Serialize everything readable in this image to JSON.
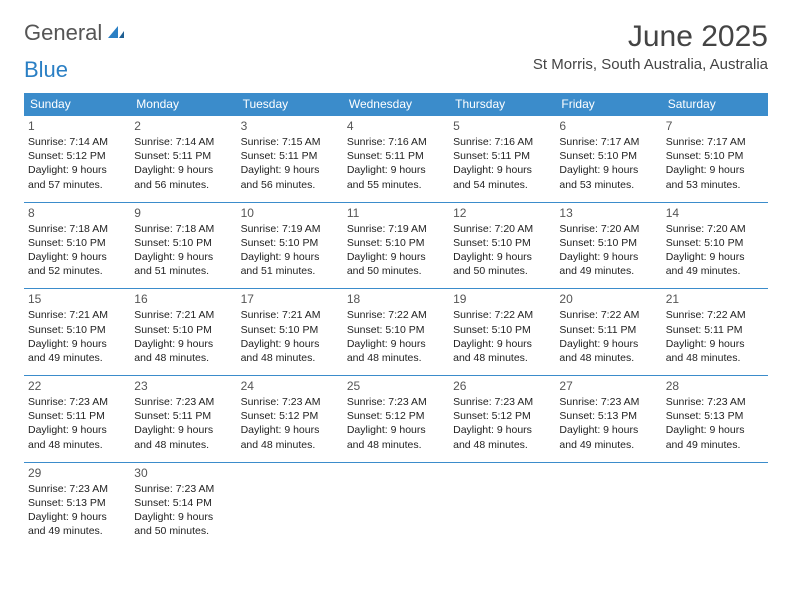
{
  "logo": {
    "general": "General",
    "blue": "Blue"
  },
  "title": "June 2025",
  "location": "St Morris, South Australia, Australia",
  "colors": {
    "header_bg": "#3b8ccb",
    "header_text": "#ffffff",
    "border": "#3b8ccb",
    "accent": "#2a7fc4",
    "text": "#222222",
    "muted": "#555555",
    "background": "#ffffff"
  },
  "day_headers": [
    "Sunday",
    "Monday",
    "Tuesday",
    "Wednesday",
    "Thursday",
    "Friday",
    "Saturday"
  ],
  "weeks": [
    [
      {
        "n": "1",
        "sr": "Sunrise: 7:14 AM",
        "ss": "Sunset: 5:12 PM",
        "d1": "Daylight: 9 hours",
        "d2": "and 57 minutes."
      },
      {
        "n": "2",
        "sr": "Sunrise: 7:14 AM",
        "ss": "Sunset: 5:11 PM",
        "d1": "Daylight: 9 hours",
        "d2": "and 56 minutes."
      },
      {
        "n": "3",
        "sr": "Sunrise: 7:15 AM",
        "ss": "Sunset: 5:11 PM",
        "d1": "Daylight: 9 hours",
        "d2": "and 56 minutes."
      },
      {
        "n": "4",
        "sr": "Sunrise: 7:16 AM",
        "ss": "Sunset: 5:11 PM",
        "d1": "Daylight: 9 hours",
        "d2": "and 55 minutes."
      },
      {
        "n": "5",
        "sr": "Sunrise: 7:16 AM",
        "ss": "Sunset: 5:11 PM",
        "d1": "Daylight: 9 hours",
        "d2": "and 54 minutes."
      },
      {
        "n": "6",
        "sr": "Sunrise: 7:17 AM",
        "ss": "Sunset: 5:10 PM",
        "d1": "Daylight: 9 hours",
        "d2": "and 53 minutes."
      },
      {
        "n": "7",
        "sr": "Sunrise: 7:17 AM",
        "ss": "Sunset: 5:10 PM",
        "d1": "Daylight: 9 hours",
        "d2": "and 53 minutes."
      }
    ],
    [
      {
        "n": "8",
        "sr": "Sunrise: 7:18 AM",
        "ss": "Sunset: 5:10 PM",
        "d1": "Daylight: 9 hours",
        "d2": "and 52 minutes."
      },
      {
        "n": "9",
        "sr": "Sunrise: 7:18 AM",
        "ss": "Sunset: 5:10 PM",
        "d1": "Daylight: 9 hours",
        "d2": "and 51 minutes."
      },
      {
        "n": "10",
        "sr": "Sunrise: 7:19 AM",
        "ss": "Sunset: 5:10 PM",
        "d1": "Daylight: 9 hours",
        "d2": "and 51 minutes."
      },
      {
        "n": "11",
        "sr": "Sunrise: 7:19 AM",
        "ss": "Sunset: 5:10 PM",
        "d1": "Daylight: 9 hours",
        "d2": "and 50 minutes."
      },
      {
        "n": "12",
        "sr": "Sunrise: 7:20 AM",
        "ss": "Sunset: 5:10 PM",
        "d1": "Daylight: 9 hours",
        "d2": "and 50 minutes."
      },
      {
        "n": "13",
        "sr": "Sunrise: 7:20 AM",
        "ss": "Sunset: 5:10 PM",
        "d1": "Daylight: 9 hours",
        "d2": "and 49 minutes."
      },
      {
        "n": "14",
        "sr": "Sunrise: 7:20 AM",
        "ss": "Sunset: 5:10 PM",
        "d1": "Daylight: 9 hours",
        "d2": "and 49 minutes."
      }
    ],
    [
      {
        "n": "15",
        "sr": "Sunrise: 7:21 AM",
        "ss": "Sunset: 5:10 PM",
        "d1": "Daylight: 9 hours",
        "d2": "and 49 minutes."
      },
      {
        "n": "16",
        "sr": "Sunrise: 7:21 AM",
        "ss": "Sunset: 5:10 PM",
        "d1": "Daylight: 9 hours",
        "d2": "and 48 minutes."
      },
      {
        "n": "17",
        "sr": "Sunrise: 7:21 AM",
        "ss": "Sunset: 5:10 PM",
        "d1": "Daylight: 9 hours",
        "d2": "and 48 minutes."
      },
      {
        "n": "18",
        "sr": "Sunrise: 7:22 AM",
        "ss": "Sunset: 5:10 PM",
        "d1": "Daylight: 9 hours",
        "d2": "and 48 minutes."
      },
      {
        "n": "19",
        "sr": "Sunrise: 7:22 AM",
        "ss": "Sunset: 5:10 PM",
        "d1": "Daylight: 9 hours",
        "d2": "and 48 minutes."
      },
      {
        "n": "20",
        "sr": "Sunrise: 7:22 AM",
        "ss": "Sunset: 5:11 PM",
        "d1": "Daylight: 9 hours",
        "d2": "and 48 minutes."
      },
      {
        "n": "21",
        "sr": "Sunrise: 7:22 AM",
        "ss": "Sunset: 5:11 PM",
        "d1": "Daylight: 9 hours",
        "d2": "and 48 minutes."
      }
    ],
    [
      {
        "n": "22",
        "sr": "Sunrise: 7:23 AM",
        "ss": "Sunset: 5:11 PM",
        "d1": "Daylight: 9 hours",
        "d2": "and 48 minutes."
      },
      {
        "n": "23",
        "sr": "Sunrise: 7:23 AM",
        "ss": "Sunset: 5:11 PM",
        "d1": "Daylight: 9 hours",
        "d2": "and 48 minutes."
      },
      {
        "n": "24",
        "sr": "Sunrise: 7:23 AM",
        "ss": "Sunset: 5:12 PM",
        "d1": "Daylight: 9 hours",
        "d2": "and 48 minutes."
      },
      {
        "n": "25",
        "sr": "Sunrise: 7:23 AM",
        "ss": "Sunset: 5:12 PM",
        "d1": "Daylight: 9 hours",
        "d2": "and 48 minutes."
      },
      {
        "n": "26",
        "sr": "Sunrise: 7:23 AM",
        "ss": "Sunset: 5:12 PM",
        "d1": "Daylight: 9 hours",
        "d2": "and 48 minutes."
      },
      {
        "n": "27",
        "sr": "Sunrise: 7:23 AM",
        "ss": "Sunset: 5:13 PM",
        "d1": "Daylight: 9 hours",
        "d2": "and 49 minutes."
      },
      {
        "n": "28",
        "sr": "Sunrise: 7:23 AM",
        "ss": "Sunset: 5:13 PM",
        "d1": "Daylight: 9 hours",
        "d2": "and 49 minutes."
      }
    ],
    [
      {
        "n": "29",
        "sr": "Sunrise: 7:23 AM",
        "ss": "Sunset: 5:13 PM",
        "d1": "Daylight: 9 hours",
        "d2": "and 49 minutes."
      },
      {
        "n": "30",
        "sr": "Sunrise: 7:23 AM",
        "ss": "Sunset: 5:14 PM",
        "d1": "Daylight: 9 hours",
        "d2": "and 50 minutes."
      },
      null,
      null,
      null,
      null,
      null
    ]
  ]
}
